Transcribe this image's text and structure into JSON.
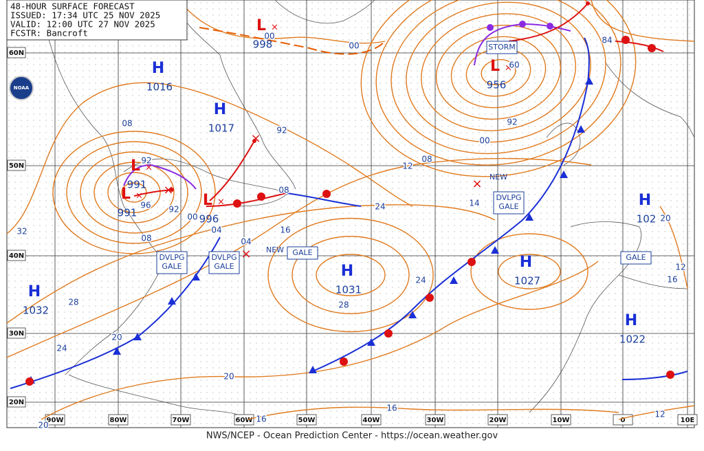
{
  "header": {
    "lines": [
      "48-HOUR SURFACE FORECAST",
      "ISSUED: 17:34 UTC 25 NOV 2025",
      "VALID: 12:00 UTC 27 NOV 2025",
      "FCSTR: Bancroft"
    ]
  },
  "logo": "NOAA",
  "footer": "NWS/NCEP - Ocean Prediction Center - https://ocean.weather.gov",
  "latitudes": [
    "60N",
    "50N",
    "40N",
    "30N",
    "20N"
  ],
  "longitudes": [
    "90W",
    "80W",
    "70W",
    "60W",
    "50W",
    "40W",
    "30W",
    "20W",
    "10W",
    "0",
    "10E"
  ],
  "pressure_centers": [
    {
      "type": "H",
      "value": "1016"
    },
    {
      "type": "H",
      "value": "1017"
    },
    {
      "type": "L",
      "value": "991"
    },
    {
      "type": "L",
      "value": "991"
    },
    {
      "type": "L",
      "value": "996"
    },
    {
      "type": "L",
      "value": "998"
    },
    {
      "type": "L",
      "value": "956"
    },
    {
      "type": "H",
      "value": "1031"
    },
    {
      "type": "H",
      "value": "1027"
    },
    {
      "type": "H",
      "value": "1032"
    },
    {
      "type": "H",
      "value": "102"
    },
    {
      "type": "H",
      "value": "1022"
    }
  ],
  "isobar_labels": [
    "08",
    "92",
    "96",
    "92",
    "00",
    "04",
    "08",
    "32",
    "28",
    "24",
    "20",
    "20",
    "16",
    "20",
    "16",
    "12",
    "04",
    "16",
    "08",
    "92",
    "24",
    "12",
    "08",
    "00",
    "92",
    "60",
    "24",
    "28",
    "14",
    "84",
    "00",
    "00",
    "20",
    "12",
    "16"
  ],
  "warnings": [
    {
      "lines": [
        "STORM"
      ]
    },
    {
      "lines": [
        "NEW"
      ]
    },
    {
      "lines": [
        "DVLPG",
        "GALE"
      ]
    },
    {
      "lines": [
        "DVLPG",
        "GALE"
      ]
    },
    {
      "lines": [
        "DVLPG",
        "GALE"
      ]
    },
    {
      "lines": [
        "NEW"
      ]
    },
    {
      "lines": [
        "GALE"
      ]
    },
    {
      "lines": [
        "GALE"
      ]
    }
  ]
}
